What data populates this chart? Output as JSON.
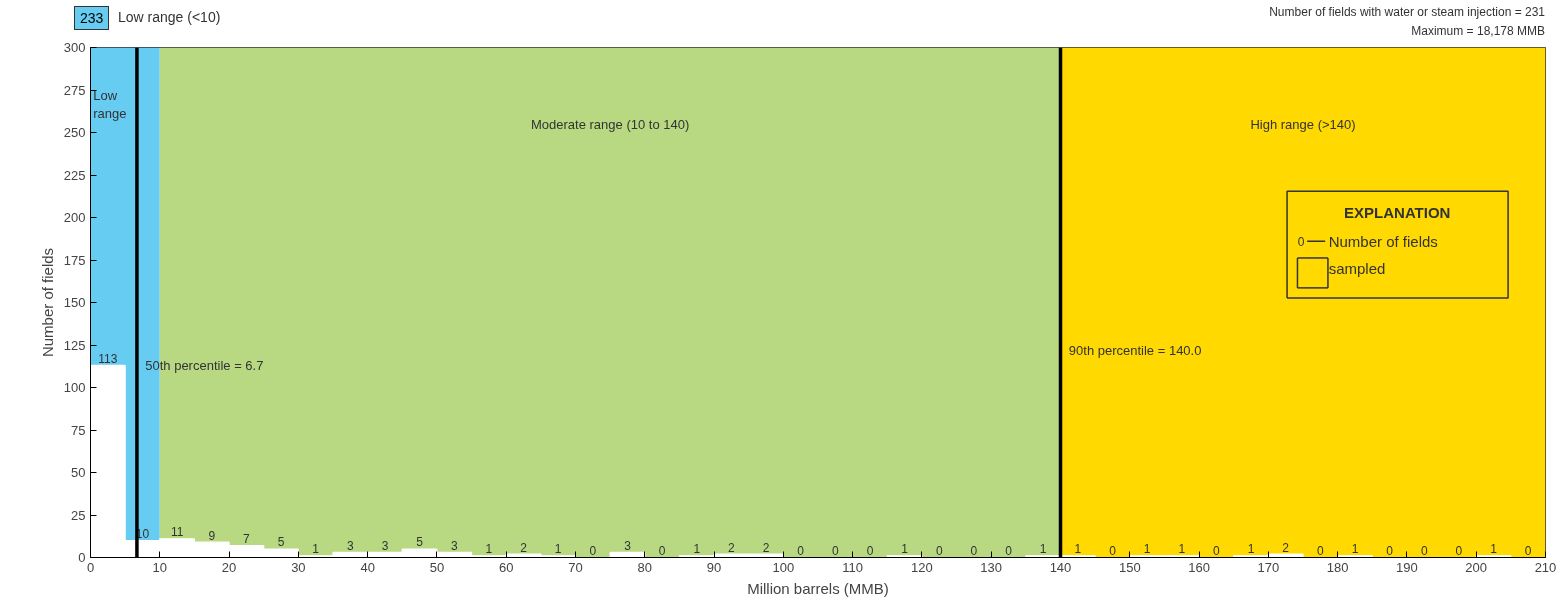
{
  "chart_data": {
    "type": "histogram",
    "xlabel": "Million barrels (MMB)",
    "ylabel": "Number of fields",
    "bins": [
      0,
      5,
      10,
      15,
      20,
      25,
      30,
      35,
      40,
      45,
      50,
      55,
      60,
      65,
      70,
      75,
      80,
      85,
      90,
      95,
      100,
      105,
      110,
      115,
      120,
      125,
      130,
      135,
      140,
      145,
      150,
      155,
      160,
      165,
      170,
      175,
      180,
      185,
      190,
      195,
      200,
      205,
      210
    ],
    "values": [
      113,
      10,
      11,
      9,
      7,
      5,
      1,
      3,
      3,
      5,
      3,
      1,
      2,
      1,
      0,
      3,
      0,
      1,
      2,
      2,
      0,
      0,
      0,
      1,
      0,
      0,
      0,
      1,
      1,
      0,
      1,
      1,
      0,
      1,
      2,
      0,
      1,
      0,
      0,
      0,
      1,
      0
    ],
    "color": "#ffffff",
    "data_labels": true,
    "xlim": [
      0,
      210
    ],
    "ylim": [
      0,
      300
    ],
    "xticks": [
      0,
      10,
      20,
      30,
      40,
      50,
      60,
      70,
      80,
      90,
      100,
      110,
      120,
      130,
      140,
      150,
      160,
      170,
      180,
      190,
      200,
      210
    ],
    "yticks": [
      0,
      25,
      50,
      75,
      100,
      125,
      150,
      175,
      200,
      225,
      250,
      275,
      300
    ],
    "grid": false,
    "bands": [
      {
        "axis": "x",
        "from": 0,
        "to": 10,
        "label": "Low range",
        "color": "#66ccf2"
      },
      {
        "axis": "x",
        "from": 10,
        "to": 140,
        "label": "Moderate range (10 to 140)",
        "color": "#b8d982"
      },
      {
        "axis": "x",
        "from": 140,
        "to": 210,
        "label": "High range (>140)",
        "color": "#ffd900"
      }
    ],
    "ref_lines": [
      {
        "axis": "x",
        "value": 6.7,
        "label": "50th percentile = 6.7",
        "color": "#000000"
      },
      {
        "axis": "x",
        "value": 140,
        "label": "90th percentile = 140.0",
        "color": "#000000"
      }
    ],
    "annotations": [
      "233",
      "Low range (<10)",
      "Number of fields with water or steam injection = 231",
      "Maximum = 18,178 MMB",
      "EXPLANATION",
      "0",
      "Number of fields",
      "sampled"
    ]
  }
}
